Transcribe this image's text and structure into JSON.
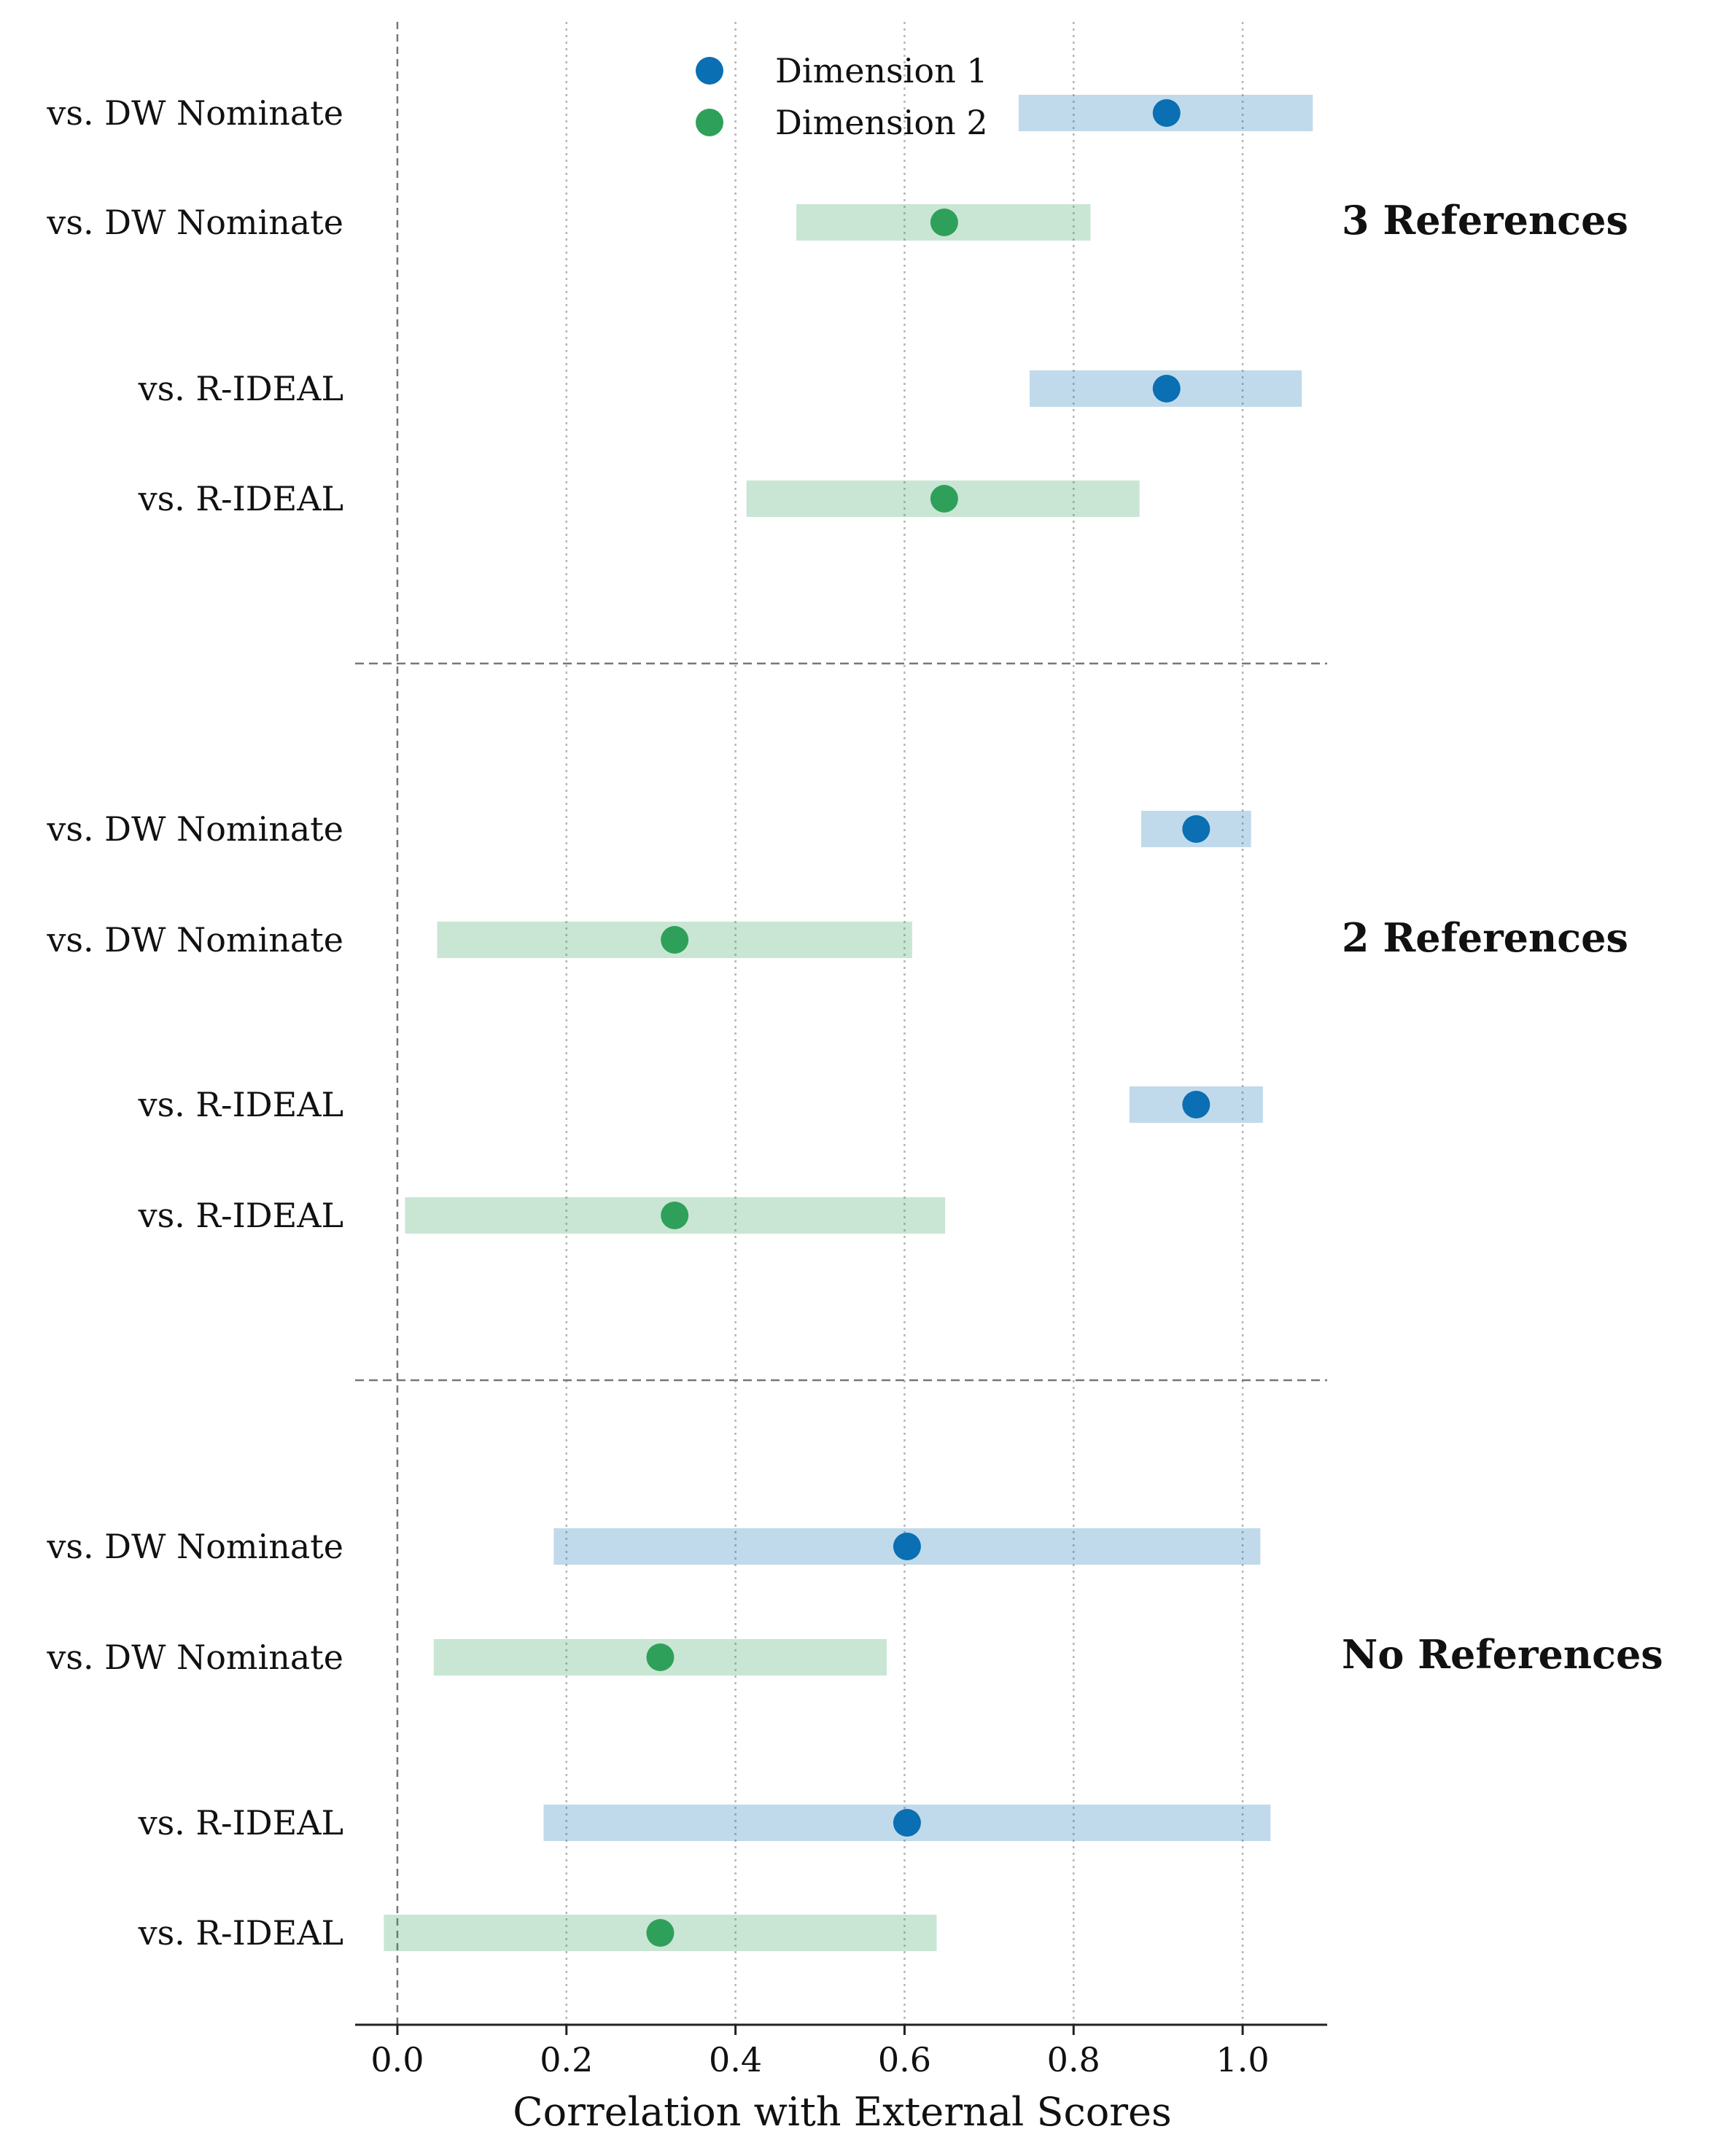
{
  "chart_data": {
    "type": "interval",
    "xlabel": "Correlation with External Scores",
    "xlim": [
      -0.05,
      1.1
    ],
    "xticks": [
      "0.0",
      "0.2",
      "0.4",
      "0.6",
      "0.8",
      "1.0"
    ],
    "xgrid": "dotted vertical",
    "reference_line_x": 0.0,
    "legend": {
      "placement": "top-center",
      "entries": [
        {
          "name": "Dimension 1",
          "color": "#0a6fb3"
        },
        {
          "name": "Dimension 2",
          "color": "#2fa05a"
        }
      ]
    },
    "groups": [
      {
        "label": "3 References",
        "rows": [
          {
            "label": "vs. DW Nominate",
            "series": "Dimension 1",
            "value": 0.91,
            "low": 0.735,
            "high": 1.083
          },
          {
            "label": "vs. DW Nominate",
            "series": "Dimension 2",
            "value": 0.647,
            "low": 0.472,
            "high": 0.82
          },
          {
            "label": "vs. R-IDEAL",
            "series": "Dimension 1",
            "value": 0.91,
            "low": 0.748,
            "high": 1.07
          },
          {
            "label": "vs. R-IDEAL",
            "series": "Dimension 2",
            "value": 0.647,
            "low": 0.413,
            "high": 0.878
          }
        ]
      },
      {
        "label": "2 References",
        "rows": [
          {
            "label": "vs. DW Nominate",
            "series": "Dimension 1",
            "value": 0.945,
            "low": 0.88,
            "high": 1.01
          },
          {
            "label": "vs. DW Nominate",
            "series": "Dimension 2",
            "value": 0.328,
            "low": 0.047,
            "high": 0.609
          },
          {
            "label": "vs. R-IDEAL",
            "series": "Dimension 1",
            "value": 0.945,
            "low": 0.866,
            "high": 1.024
          },
          {
            "label": "vs. R-IDEAL",
            "series": "Dimension 2",
            "value": 0.328,
            "low": 0.009,
            "high": 0.648
          }
        ]
      },
      {
        "label": "No References",
        "rows": [
          {
            "label": "vs. DW Nominate",
            "series": "Dimension 1",
            "value": 0.603,
            "low": 0.185,
            "high": 1.021
          },
          {
            "label": "vs. DW Nominate",
            "series": "Dimension 2",
            "value": 0.311,
            "low": 0.043,
            "high": 0.579
          },
          {
            "label": "vs. R-IDEAL",
            "series": "Dimension 1",
            "value": 0.603,
            "low": 0.173,
            "high": 1.033
          },
          {
            "label": "vs. R-IDEAL",
            "series": "Dimension 2",
            "value": 0.311,
            "low": -0.016,
            "high": 0.638
          }
        ]
      }
    ]
  }
}
